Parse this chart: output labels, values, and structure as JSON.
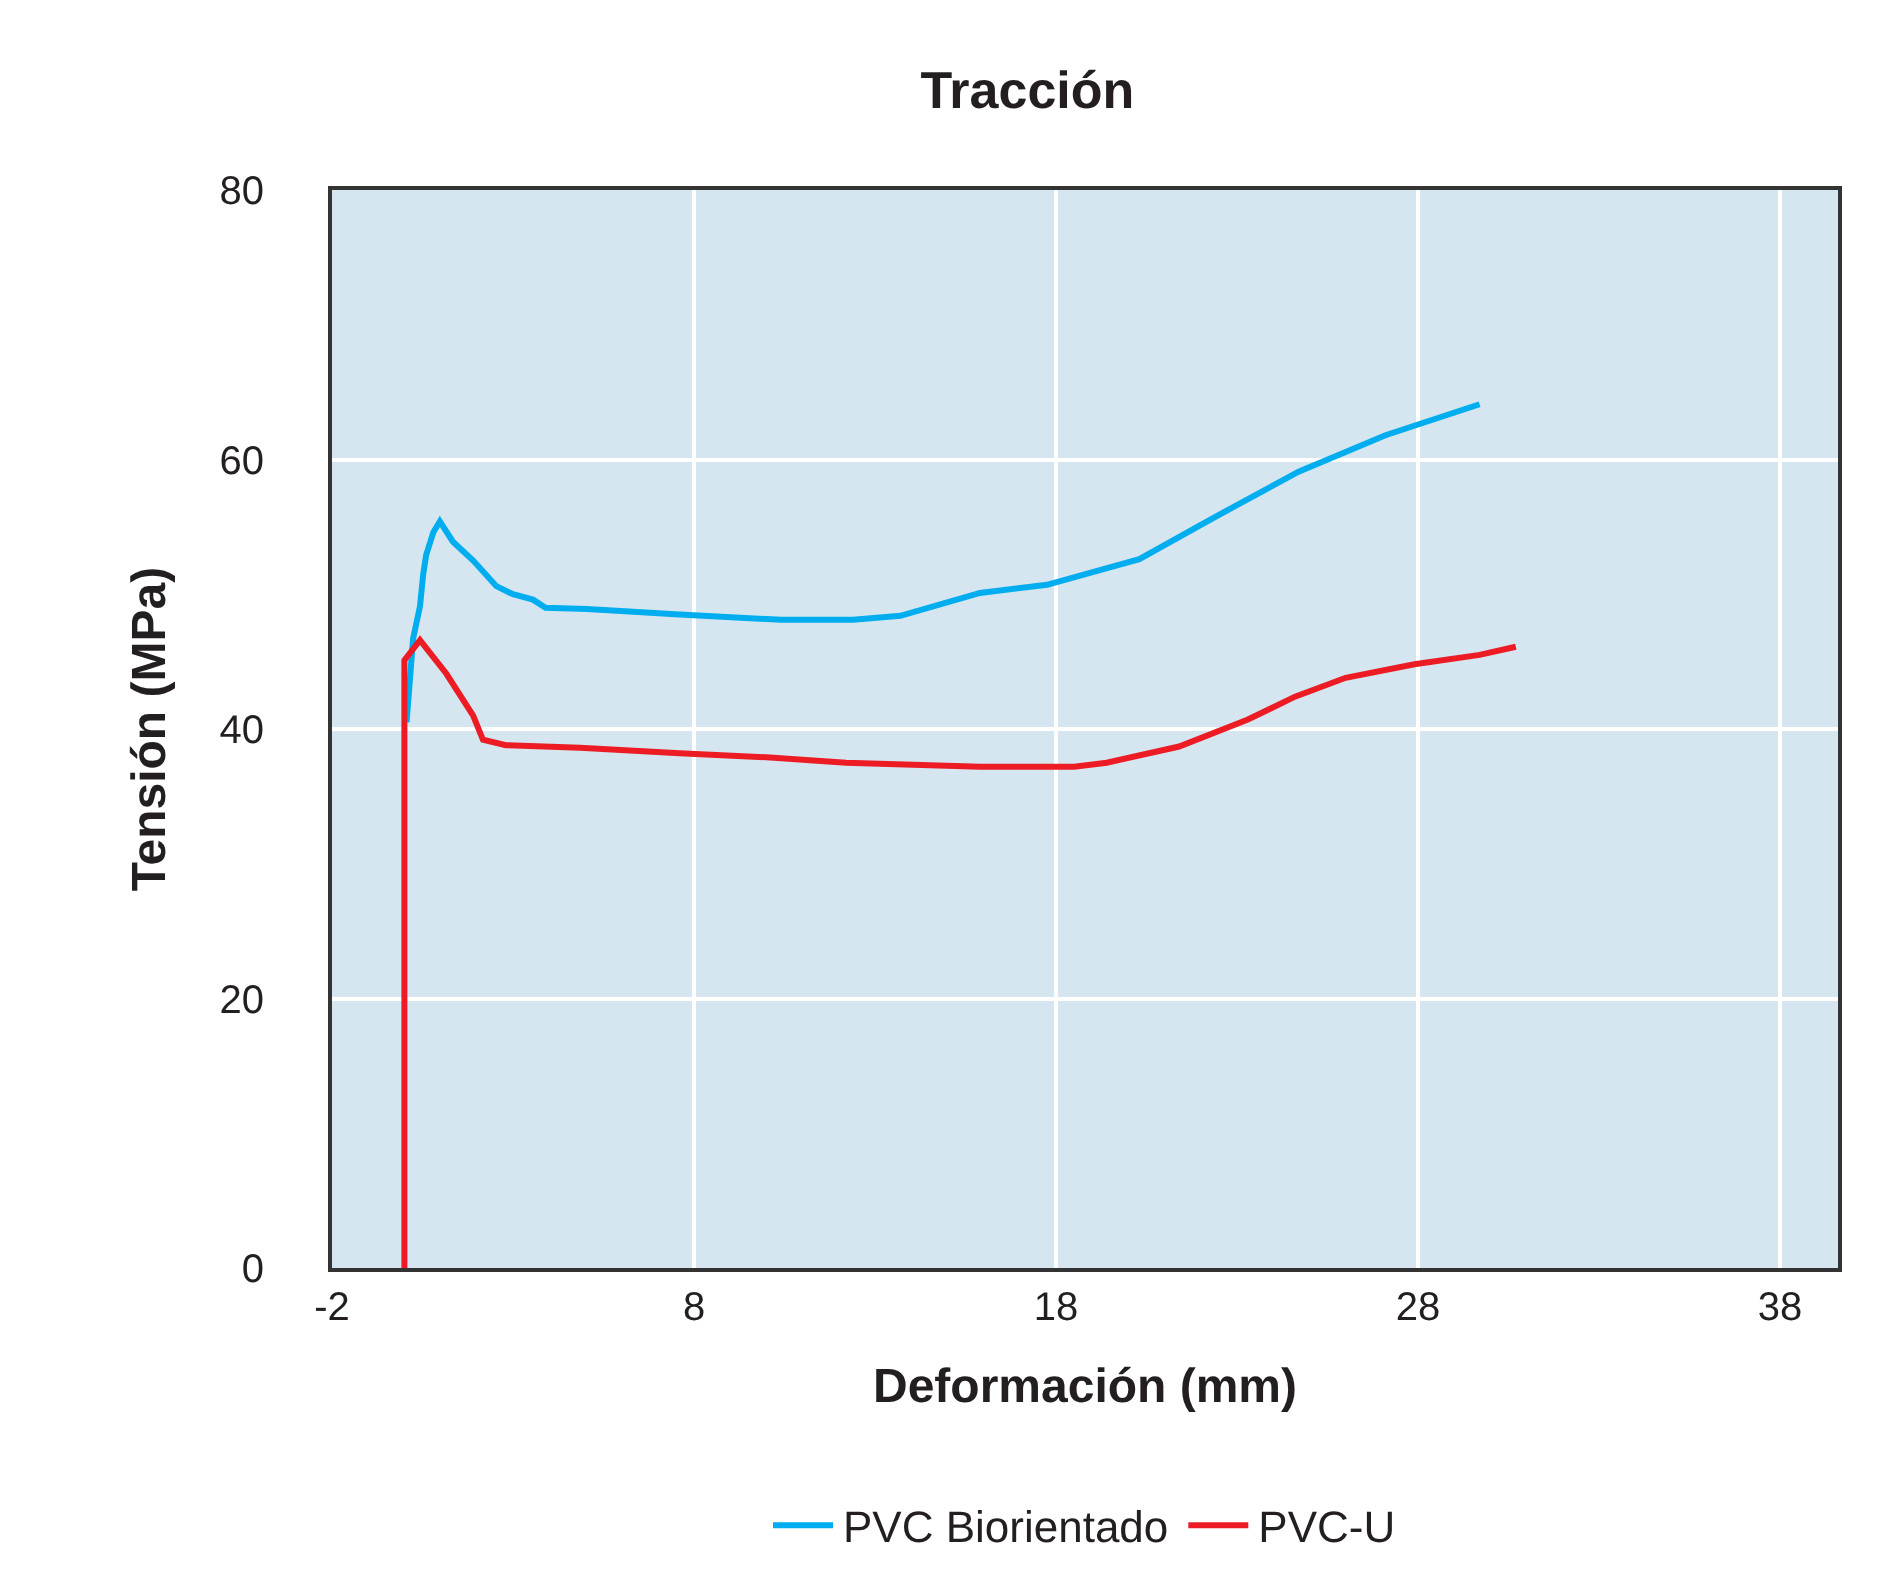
{
  "chart_data": {
    "type": "line",
    "title": "Tracción",
    "xlabel": "Deformación (mm)",
    "ylabel": "Tensión (MPa)",
    "xlim": [
      -2,
      39.6
    ],
    "xticks": [
      -2,
      8,
      18,
      28,
      38
    ],
    "ylim": [
      0,
      80
    ],
    "yticks": [
      0,
      20,
      40,
      60,
      80
    ],
    "grid": true,
    "legend": "bottom",
    "marker": "none",
    "line_style": "solid",
    "series": [
      {
        "name": "PVC Biorientado",
        "color": "#00aeef",
        "x": [
          0.06,
          0.24,
          0.43,
          0.52,
          0.6,
          0.8,
          0.98,
          1.34,
          1.9,
          2.54,
          3.0,
          3.55,
          3.9,
          5.04,
          7.6,
          10.4,
          12.4,
          13.7,
          15.9,
          17.75,
          20.3,
          22.3,
          24.7,
          27.1,
          29.7
        ],
        "values": [
          40.5,
          46.7,
          49.1,
          51.5,
          52.9,
          54.6,
          55.4,
          53.9,
          52.5,
          50.6,
          50.0,
          49.6,
          49.0,
          48.9,
          48.5,
          48.1,
          48.1,
          48.4,
          50.1,
          50.7,
          52.6,
          55.6,
          59.1,
          61.8,
          64.1
        ]
      },
      {
        "name": "PVC-U",
        "color": "#ed1c24",
        "x": [
          0,
          0,
          0.43,
          1.16,
          1.9,
          2.17,
          2.8,
          4.85,
          7.6,
          10.0,
          12.2,
          15.9,
          18.5,
          19.4,
          21.4,
          23.3,
          24.6,
          26.0,
          27.9,
          29.7,
          30.7
        ],
        "values": [
          0,
          45.1,
          46.6,
          44.1,
          41.0,
          39.2,
          38.8,
          38.6,
          38.2,
          37.9,
          37.5,
          37.2,
          37.2,
          37.5,
          38.7,
          40.7,
          42.4,
          43.8,
          44.8,
          45.5,
          46.1
        ]
      }
    ]
  }
}
